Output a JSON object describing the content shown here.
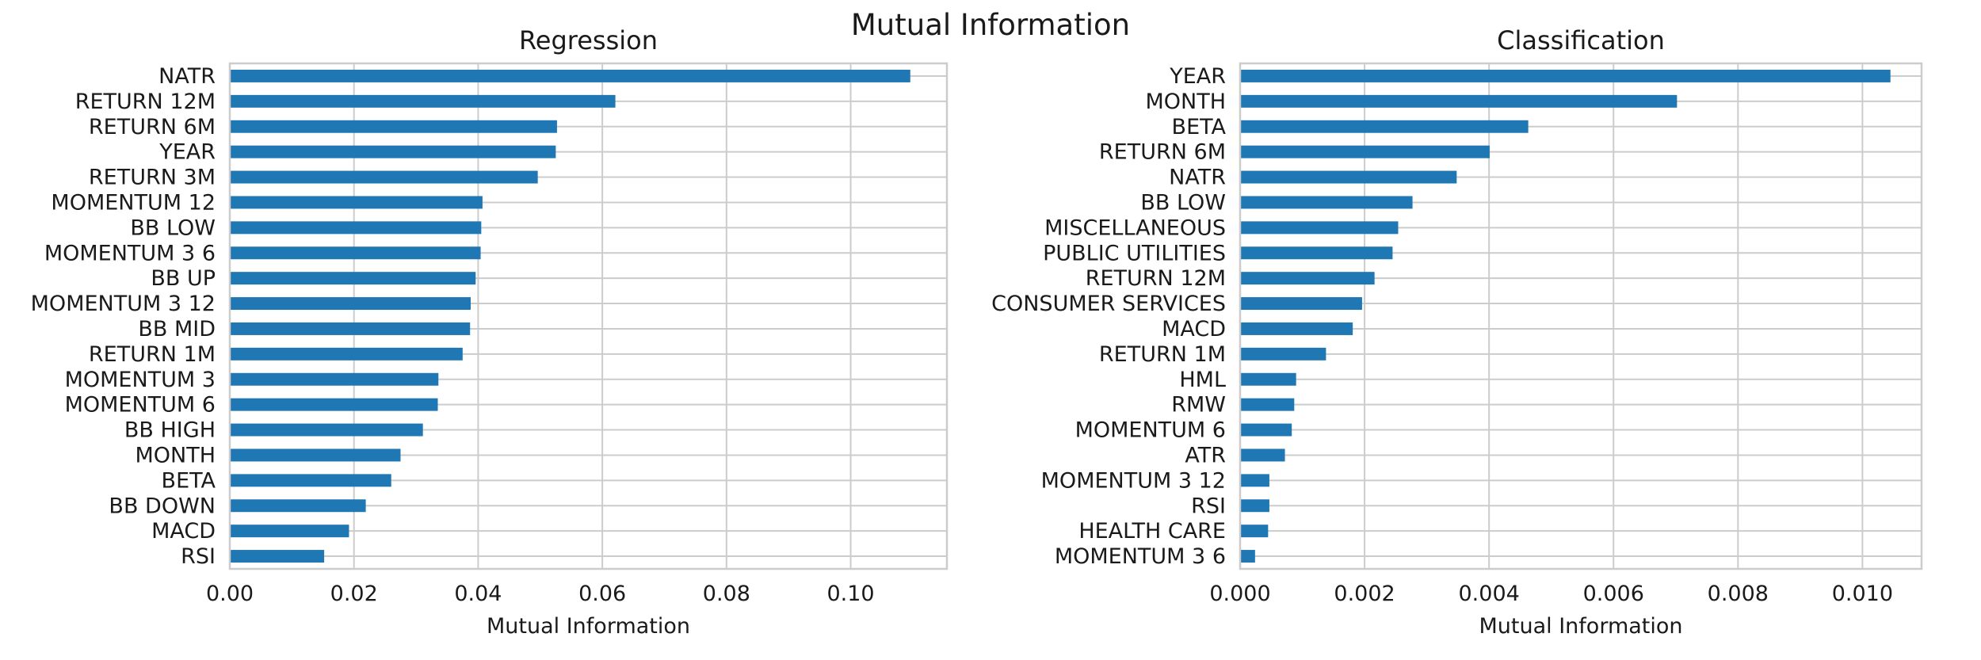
{
  "figure": {
    "title": "Mutual Information"
  },
  "colors": {
    "bar": "#1f77b4",
    "grid": "#cccccc",
    "text": "#1a1a1a"
  },
  "chart_data": [
    {
      "id": "regression",
      "type": "bar",
      "orientation": "horizontal",
      "title": "Regression",
      "xlabel": "Mutual Information",
      "ylabel": "",
      "xlim": [
        0,
        0.1155
      ],
      "xticks": [
        0.0,
        0.02,
        0.04,
        0.06,
        0.08,
        0.1
      ],
      "xtick_labels": [
        "0.00",
        "0.02",
        "0.04",
        "0.06",
        "0.08",
        "0.10"
      ],
      "grid": true,
      "categories": [
        "NATR",
        "RETURN 12M",
        "RETURN 6M",
        "YEAR",
        "RETURN 3M",
        "MOMENTUM 12",
        "BB LOW",
        "MOMENTUM 3 6",
        "BB UP",
        "MOMENTUM 3 12",
        "BB MID",
        "RETURN 1M",
        "MOMENTUM 3",
        "MOMENTUM 6",
        "BB HIGH",
        "MONTH",
        "BETA",
        "BB DOWN",
        "MACD",
        "RSI"
      ],
      "values": [
        0.1096,
        0.0621,
        0.0527,
        0.0525,
        0.0496,
        0.0407,
        0.0405,
        0.0404,
        0.0396,
        0.0388,
        0.0387,
        0.0375,
        0.0336,
        0.0335,
        0.0311,
        0.0275,
        0.026,
        0.0219,
        0.0192,
        0.0152
      ]
    },
    {
      "id": "classification",
      "type": "bar",
      "orientation": "horizontal",
      "title": "Classification",
      "xlabel": "Mutual Information",
      "ylabel": "",
      "xlim": [
        0,
        0.01095
      ],
      "xticks": [
        0.0,
        0.002,
        0.004,
        0.006,
        0.008,
        0.01
      ],
      "xtick_labels": [
        "0.000",
        "0.002",
        "0.004",
        "0.006",
        "0.008",
        "0.010"
      ],
      "grid": true,
      "categories": [
        "YEAR",
        "MONTH",
        "BETA",
        "RETURN 6M",
        "NATR",
        "BB LOW",
        "MISCELLANEOUS",
        "PUBLIC UTILITIES",
        "RETURN 12M",
        "CONSUMER SERVICES",
        "MACD",
        "RETURN 1M",
        "HML",
        "RMW",
        "MOMENTUM 6",
        "ATR",
        "MOMENTUM 3 12",
        "RSI",
        "HEALTH CARE",
        "MOMENTUM 3 6"
      ],
      "values": [
        0.01045,
        0.00702,
        0.00463,
        0.00401,
        0.00348,
        0.00277,
        0.00254,
        0.00245,
        0.00216,
        0.00196,
        0.00181,
        0.00138,
        0.0009,
        0.00087,
        0.00083,
        0.00072,
        0.00047,
        0.00047,
        0.00045,
        0.00024
      ]
    }
  ]
}
